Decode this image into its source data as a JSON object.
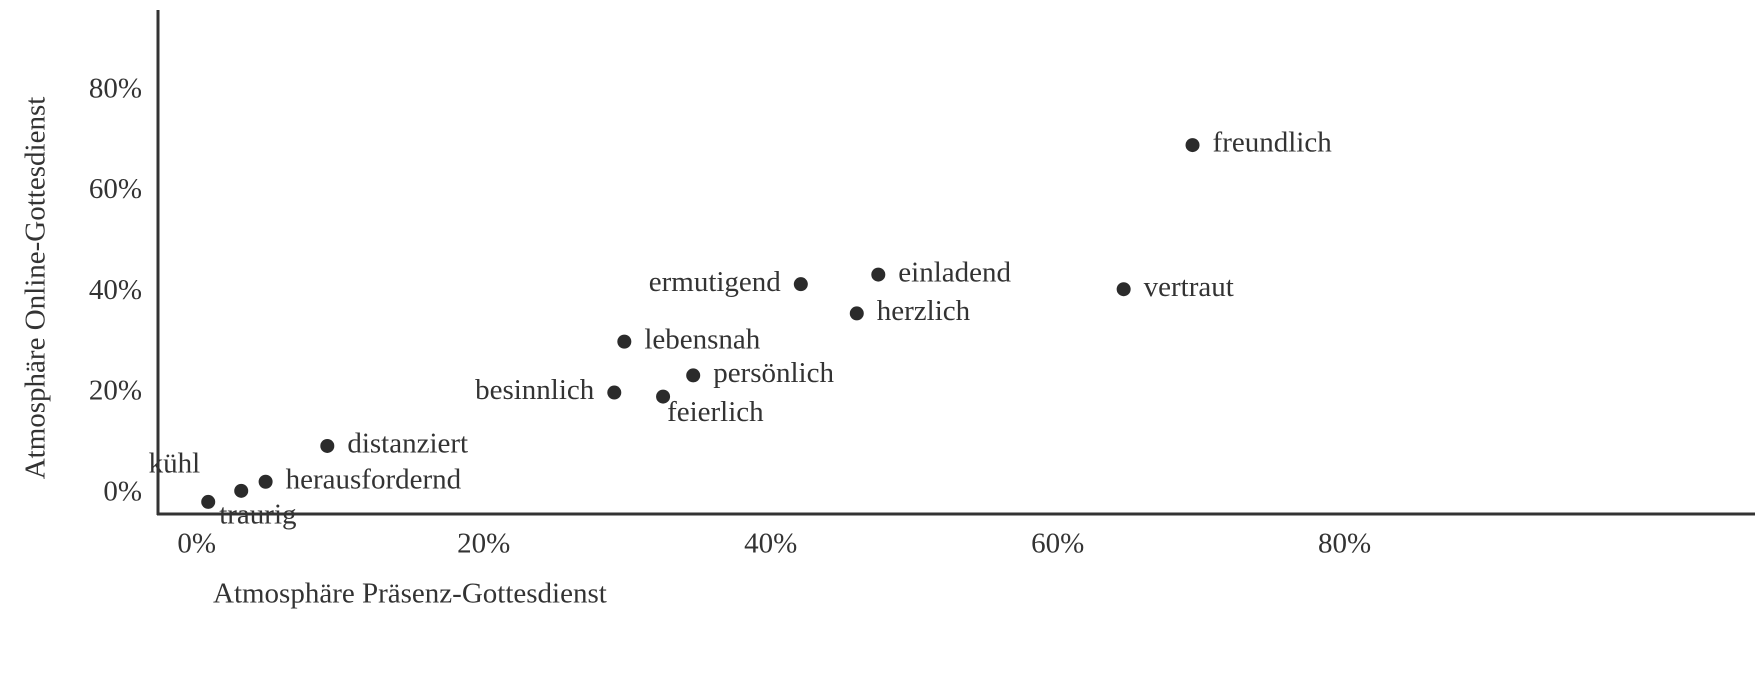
{
  "chart_data": {
    "type": "scatter",
    "xlabel": "Atmosphäre Präsenz-Gottesdienst",
    "ylabel": "Atmosphäre Online-Gottesdienst",
    "labels": [
      "kühl",
      "traurig",
      "herausfordernd",
      "distanziert",
      "besinnlich",
      "feierlich",
      "persönlich",
      "lebensnah",
      "ermutigend",
      "herzlich",
      "einladend",
      "vertraut",
      "freundlich"
    ],
    "x": [
      0.8,
      3.1,
      4.8,
      9.1,
      29.1,
      32.5,
      34.6,
      29.8,
      42.1,
      46.0,
      47.5,
      64.6,
      69.4
    ],
    "values": [
      -1.6,
      0.6,
      2.4,
      9.5,
      20.1,
      19.3,
      23.5,
      30.2,
      41.6,
      35.8,
      43.5,
      40.6,
      69.2
    ],
    "color": "#2b2b2b",
    "xlim": [
      -2.7,
      108.6
    ],
    "ylim": [
      -4,
      96
    ],
    "xticks": [
      {
        "value": 0,
        "label": "0%"
      },
      {
        "value": 20,
        "label": "20%"
      },
      {
        "value": 40,
        "label": "40%"
      },
      {
        "value": 60,
        "label": "60%"
      },
      {
        "value": 80,
        "label": "80%"
      }
    ],
    "yticks": [
      {
        "value": 0,
        "label": "0%"
      },
      {
        "value": 20,
        "label": "20%"
      },
      {
        "value": 40,
        "label": "40%"
      },
      {
        "value": 60,
        "label": "60%"
      },
      {
        "value": 80,
        "label": "80%"
      }
    ]
  }
}
